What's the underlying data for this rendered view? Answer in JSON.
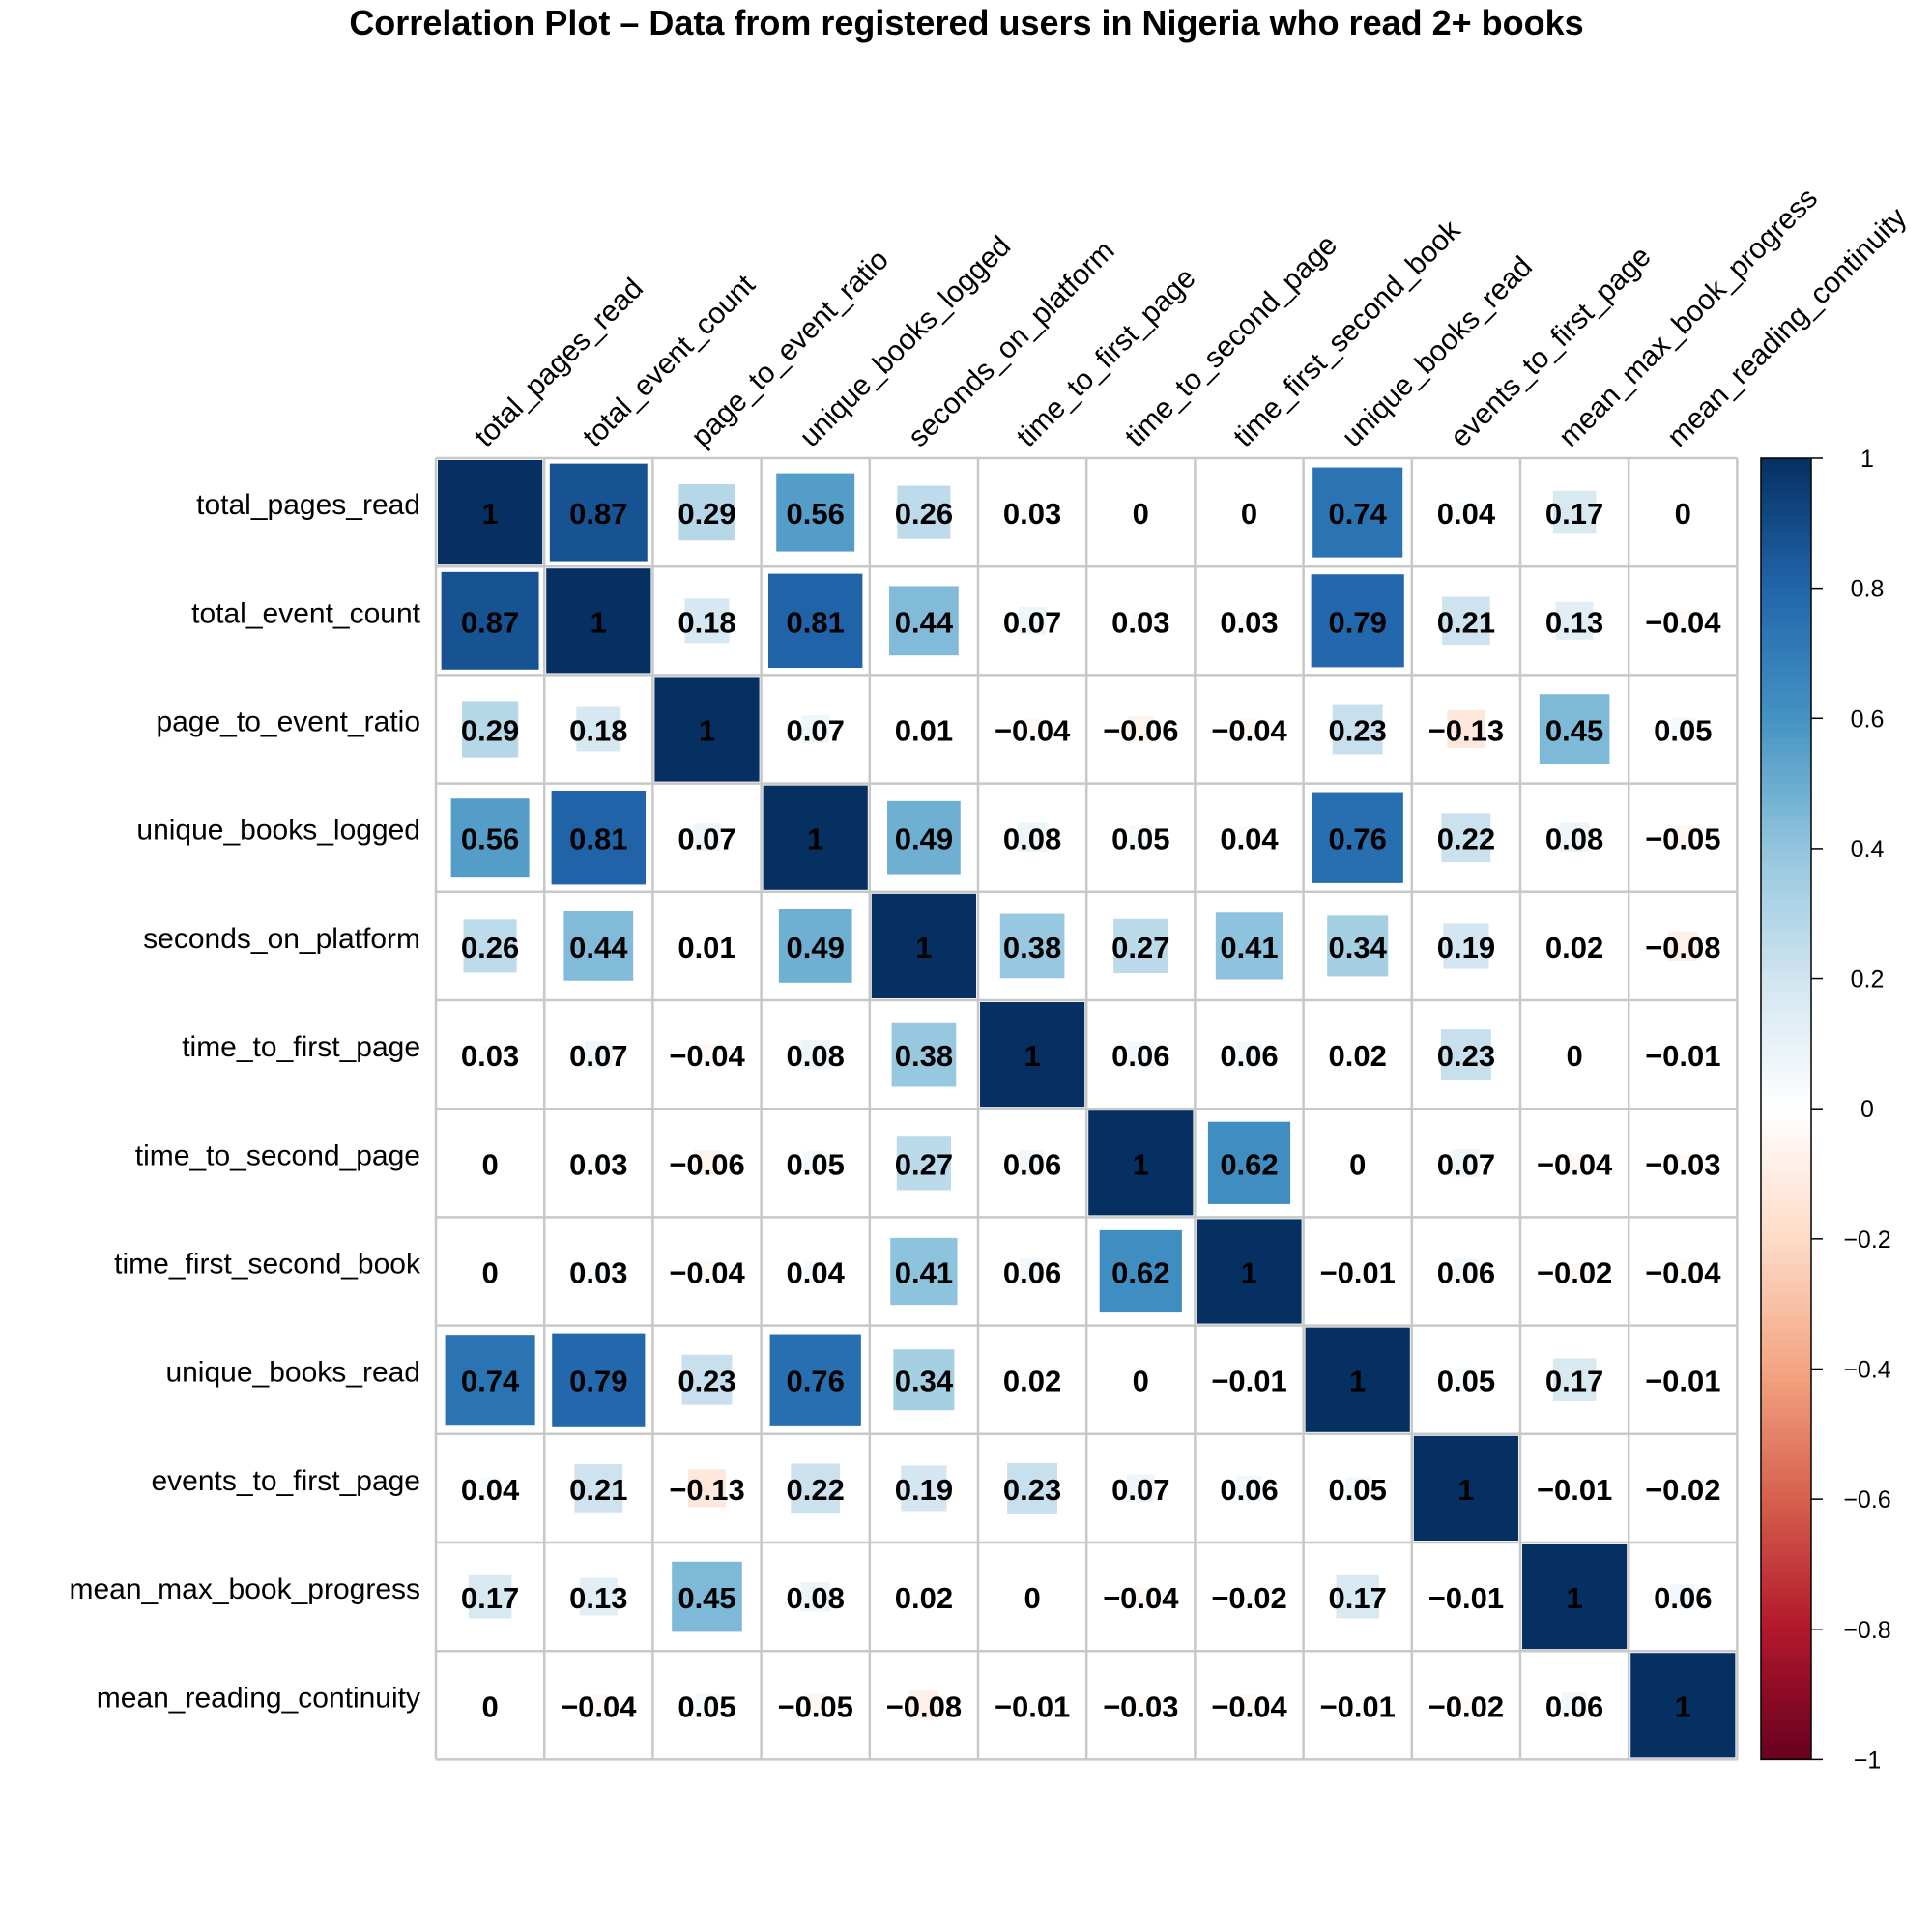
{
  "chart_data": {
    "type": "heatmap",
    "title": "Correlation Plot – Data from registered users in Nigeria who read 2+ books",
    "variables": [
      "total_pages_read",
      "total_event_count",
      "page_to_event_ratio",
      "unique_books_logged",
      "seconds_on_platform",
      "time_to_first_page",
      "time_to_second_page",
      "time_first_second_book",
      "unique_books_read",
      "events_to_first_page",
      "mean_max_book_progress",
      "mean_reading_continuity"
    ],
    "matrix": [
      [
        1,
        0.87,
        0.29,
        0.56,
        0.26,
        0.03,
        0,
        0,
        0.74,
        0.04,
        0.17,
        0
      ],
      [
        0.87,
        1,
        0.18,
        0.81,
        0.44,
        0.07,
        0.03,
        0.03,
        0.79,
        0.21,
        0.13,
        -0.04
      ],
      [
        0.29,
        0.18,
        1,
        0.07,
        0.01,
        -0.04,
        -0.06,
        -0.04,
        0.23,
        -0.13,
        0.45,
        0.05
      ],
      [
        0.56,
        0.81,
        0.07,
        1,
        0.49,
        0.08,
        0.05,
        0.04,
        0.76,
        0.22,
        0.08,
        -0.05
      ],
      [
        0.26,
        0.44,
        0.01,
        0.49,
        1,
        0.38,
        0.27,
        0.41,
        0.34,
        0.19,
        0.02,
        -0.08
      ],
      [
        0.03,
        0.07,
        -0.04,
        0.08,
        0.38,
        1,
        0.06,
        0.06,
        0.02,
        0.23,
        0,
        -0.01
      ],
      [
        0,
        0.03,
        -0.06,
        0.05,
        0.27,
        0.06,
        1,
        0.62,
        0,
        0.07,
        -0.04,
        -0.03
      ],
      [
        0,
        0.03,
        -0.04,
        0.04,
        0.41,
        0.06,
        0.62,
        1,
        -0.01,
        0.06,
        -0.02,
        -0.04
      ],
      [
        0.74,
        0.79,
        0.23,
        0.76,
        0.34,
        0.02,
        0,
        -0.01,
        1,
        0.05,
        0.17,
        -0.01
      ],
      [
        0.04,
        0.21,
        -0.13,
        0.22,
        0.19,
        0.23,
        0.07,
        0.06,
        0.05,
        1,
        -0.01,
        -0.02
      ],
      [
        0.17,
        0.13,
        0.45,
        0.08,
        0.02,
        0,
        -0.04,
        -0.02,
        0.17,
        -0.01,
        1,
        0.06
      ],
      [
        0,
        -0.04,
        0.05,
        -0.05,
        -0.08,
        -0.01,
        -0.03,
        -0.04,
        -0.01,
        -0.02,
        0.06,
        1
      ]
    ],
    "colorbar": {
      "range": [
        -1,
        1
      ],
      "ticks": [
        "1",
        "0.8",
        "0.6",
        "0.4",
        "0.2",
        "0",
        "−0.2",
        "−0.4",
        "−0.6",
        "−0.8",
        "−1"
      ],
      "tick_values": [
        1,
        0.8,
        0.6,
        0.4,
        0.2,
        0,
        -0.2,
        -0.4,
        -0.6,
        -0.8,
        -1
      ],
      "colors": [
        "#67001F",
        "#B2182B",
        "#D6604D",
        "#F4A582",
        "#FDDBC7",
        "#FFFFFF",
        "#D1E5F0",
        "#92C5DE",
        "#4393C3",
        "#2166AC",
        "#053061"
      ]
    },
    "method": "square",
    "grid": true
  }
}
